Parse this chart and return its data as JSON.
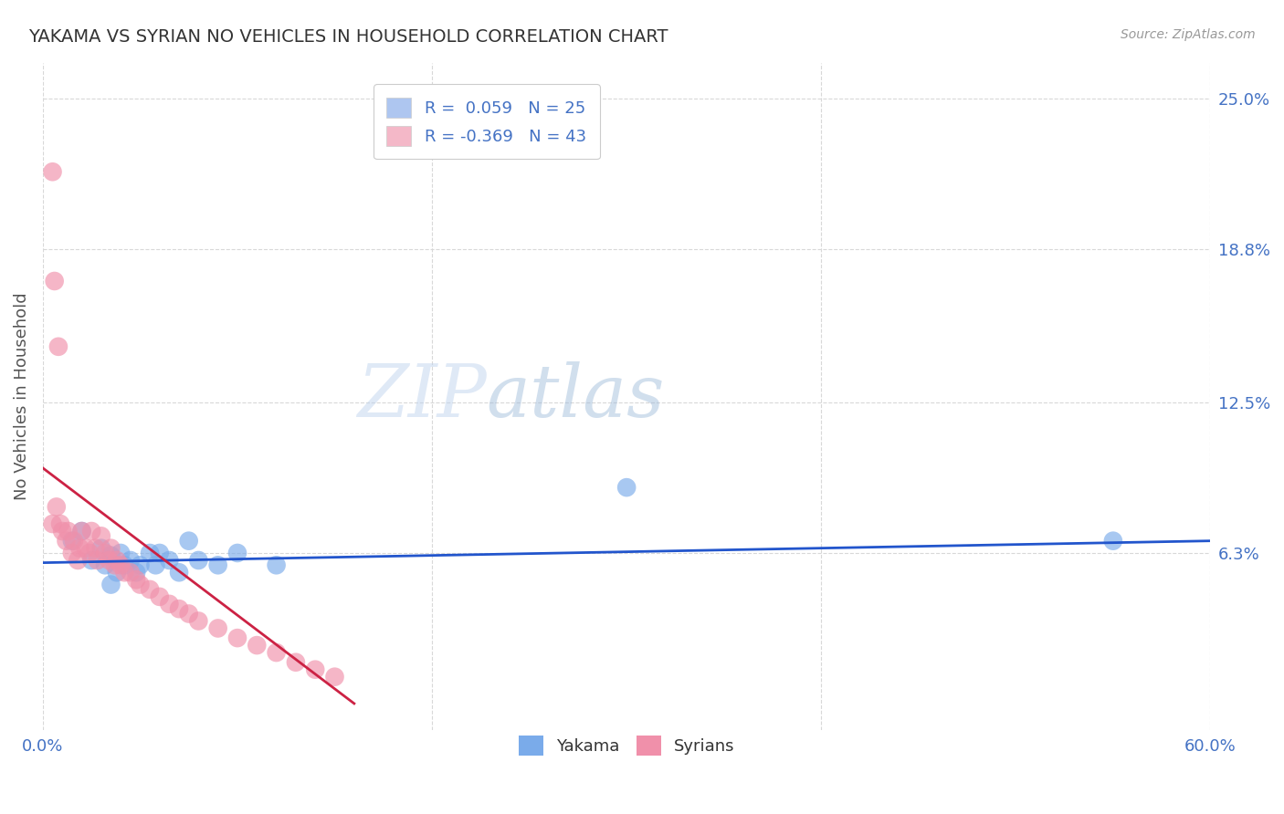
{
  "title": "YAKAMA VS SYRIAN NO VEHICLES IN HOUSEHOLD CORRELATION CHART",
  "source": "Source: ZipAtlas.com",
  "ylabel": "No Vehicles in Household",
  "xlim": [
    0.0,
    0.6
  ],
  "ylim": [
    -0.01,
    0.265
  ],
  "ytick_right": [
    0.063,
    0.125,
    0.188,
    0.25
  ],
  "ytick_right_labels": [
    "6.3%",
    "12.5%",
    "18.8%",
    "25.0%"
  ],
  "grid_color": "#d8d8d8",
  "background_color": "#ffffff",
  "legend_entries": [
    {
      "label": "R =  0.059   N = 25",
      "color": "#aec6f0"
    },
    {
      "label": "R = -0.369   N = 43",
      "color": "#f4b8c8"
    }
  ],
  "yakama_color": "#7aabea",
  "syrian_color": "#f090aa",
  "trend_yakama_color": "#2255cc",
  "trend_syrian_color": "#cc2244",
  "watermark_zip": "ZIP",
  "watermark_atlas": "atlas",
  "bottom_legend": [
    "Yakama",
    "Syrians"
  ],
  "yakama_x": [
    0.015,
    0.02,
    0.025,
    0.03,
    0.032,
    0.035,
    0.038,
    0.04,
    0.042,
    0.045,
    0.048,
    0.05,
    0.055,
    0.058,
    0.06,
    0.065,
    0.07,
    0.075,
    0.08,
    0.09,
    0.1,
    0.12,
    0.3,
    0.55,
    0.035
  ],
  "yakama_y": [
    0.068,
    0.072,
    0.06,
    0.065,
    0.058,
    0.062,
    0.055,
    0.063,
    0.058,
    0.06,
    0.055,
    0.058,
    0.063,
    0.058,
    0.063,
    0.06,
    0.055,
    0.068,
    0.06,
    0.058,
    0.063,
    0.058,
    0.09,
    0.068,
    0.05
  ],
  "syrian_x": [
    0.005,
    0.007,
    0.009,
    0.01,
    0.012,
    0.013,
    0.015,
    0.016,
    0.018,
    0.019,
    0.02,
    0.022,
    0.024,
    0.025,
    0.027,
    0.028,
    0.03,
    0.032,
    0.034,
    0.035,
    0.037,
    0.038,
    0.04,
    0.042,
    0.045,
    0.048,
    0.05,
    0.055,
    0.06,
    0.065,
    0.07,
    0.075,
    0.08,
    0.09,
    0.1,
    0.11,
    0.12,
    0.13,
    0.14,
    0.15,
    0.005,
    0.006,
    0.008
  ],
  "syrian_y": [
    0.075,
    0.082,
    0.075,
    0.072,
    0.068,
    0.072,
    0.063,
    0.068,
    0.06,
    0.065,
    0.072,
    0.065,
    0.063,
    0.072,
    0.065,
    0.06,
    0.07,
    0.063,
    0.06,
    0.065,
    0.058,
    0.06,
    0.058,
    0.055,
    0.055,
    0.052,
    0.05,
    0.048,
    0.045,
    0.042,
    0.04,
    0.038,
    0.035,
    0.032,
    0.028,
    0.025,
    0.022,
    0.018,
    0.015,
    0.012,
    0.22,
    0.175,
    0.148
  ],
  "trend_yakama_x0": 0.0,
  "trend_yakama_x1": 0.6,
  "trend_yakama_y0": 0.059,
  "trend_yakama_y1": 0.068,
  "trend_syrian_x0": 0.0,
  "trend_syrian_x1": 0.16,
  "trend_syrian_y0": 0.098,
  "trend_syrian_y1": 0.001
}
